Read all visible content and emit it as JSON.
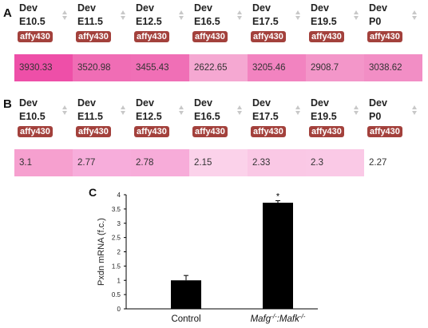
{
  "panels": {
    "a": {
      "letter": "A"
    },
    "b": {
      "letter": "B"
    },
    "c": {
      "letter": "C"
    }
  },
  "table_a": {
    "columns": [
      {
        "dev": "Dev",
        "stage": "E10.5",
        "badge": "affy430",
        "value": "3930.33",
        "color": "#ee4fa8"
      },
      {
        "dev": "Dev",
        "stage": "E11.5",
        "badge": "affy430",
        "value": "3520.98",
        "color": "#f06db5"
      },
      {
        "dev": "Dev",
        "stage": "E12.5",
        "badge": "affy430",
        "value": "3455.43",
        "color": "#f06fb6"
      },
      {
        "dev": "Dev",
        "stage": "E16.5",
        "badge": "affy430",
        "value": "2622.65",
        "color": "#f5a8d2"
      },
      {
        "dev": "Dev",
        "stage": "E17.5",
        "badge": "affy430",
        "value": "3205.46",
        "color": "#f283c0"
      },
      {
        "dev": "Dev",
        "stage": "E19.5",
        "badge": "affy430",
        "value": "2908.7",
        "color": "#f396c9"
      },
      {
        "dev": "Dev",
        "stage": "P0",
        "badge": "affy430",
        "value": "3038.62",
        "color": "#f28ec5"
      }
    ]
  },
  "table_b": {
    "columns": [
      {
        "dev": "Dev",
        "stage": "E10.5",
        "badge": "affy430",
        "value": "3.1",
        "color": "#f6a0cf"
      },
      {
        "dev": "Dev",
        "stage": "E11.5",
        "badge": "affy430",
        "value": "2.77",
        "color": "#f7addb"
      },
      {
        "dev": "Dev",
        "stage": "E12.5",
        "badge": "affy430",
        "value": "2.78",
        "color": "#f7acd9"
      },
      {
        "dev": "Dev",
        "stage": "E16.5",
        "badge": "affy430",
        "value": "2.15",
        "color": "#fbd2ea"
      },
      {
        "dev": "Dev",
        "stage": "E17.5",
        "badge": "affy430",
        "value": "2.33",
        "color": "#fac8e5"
      },
      {
        "dev": "Dev",
        "stage": "E19.5",
        "badge": "affy430",
        "value": "2.3",
        "color": "#fac9e6"
      },
      {
        "dev": "Dev",
        "stage": "P0",
        "badge": "affy430",
        "value": "2.27",
        "color": "#faccе7"
      }
    ]
  },
  "chart_data": {
    "type": "bar",
    "categories": [
      "Control",
      "Mafg-/-:Mafk-/-"
    ],
    "values": [
      1.0,
      3.72
    ],
    "errors": [
      0.17,
      0.07
    ],
    "significance": [
      "",
      "*"
    ],
    "title": "",
    "xlabel": "",
    "ylabel": "Pxdn mRNA (f.c.)",
    "ylim": [
      0,
      4
    ],
    "yticks": [
      "0",
      "0.5",
      "1",
      "1.5",
      "2",
      "2.5",
      "3",
      "3.5",
      "4"
    ],
    "grid": false,
    "bar_color": "#000000"
  }
}
